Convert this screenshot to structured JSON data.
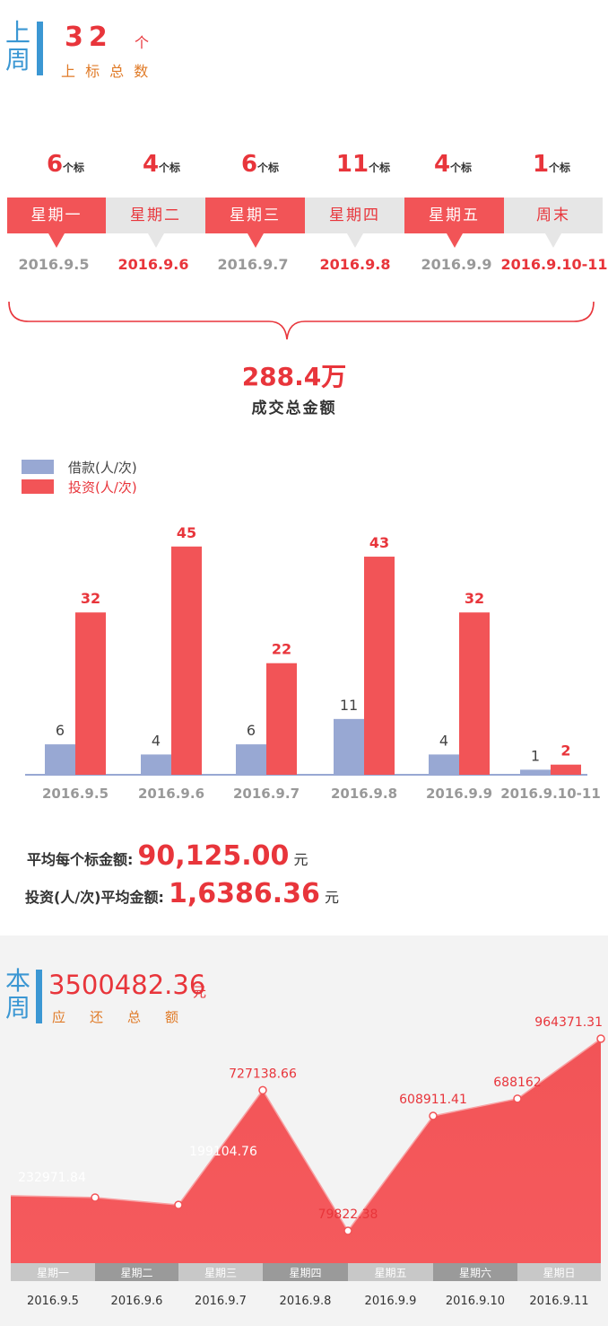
{
  "last_week": {
    "side_top": "上",
    "side_bottom": "周",
    "total": "32",
    "total_unit": "个",
    "total_label": "上 标 总 数",
    "days": [
      {
        "count": "6",
        "unit": "个标",
        "weekday": "星期一",
        "date": "2016.9.5",
        "active": true
      },
      {
        "count": "4",
        "unit": "个标",
        "weekday": "星期二",
        "date": "2016.9.6",
        "active": false
      },
      {
        "count": "6",
        "unit": "个标",
        "weekday": "星期三",
        "date": "2016.9.7",
        "active": true
      },
      {
        "count": "11",
        "unit": "个标",
        "weekday": "星期四",
        "date": "2016.9.8",
        "active": false
      },
      {
        "count": "4",
        "unit": "个标",
        "weekday": "星期五",
        "date": "2016.9.9",
        "active": true
      },
      {
        "count": "1",
        "unit": "个标",
        "weekday": "周末",
        "date": "2016.9.10-11",
        "active": false
      }
    ],
    "amount": "288.4万",
    "amount_label": "成交总金额"
  },
  "stats": {
    "avg_per_loan_label": "平均每个标金额:",
    "avg_per_loan_value": "90,125.00",
    "avg_per_loan_unit": "元",
    "avg_per_invest_label": "投资(人/次)平均金额:",
    "avg_per_invest_value": "1,6386.36",
    "avg_per_invest_unit": "元"
  },
  "this_week": {
    "side_top": "本",
    "side_bottom": "周",
    "total": "3500482.36",
    "total_unit": "元",
    "total_label": "应　还　总　额"
  },
  "chart_data": [
    {
      "type": "bar",
      "categories": [
        "2016.9.5",
        "2016.9.6",
        "2016.9.7",
        "2016.9.8",
        "2016.9.9",
        "2016.9.10-11"
      ],
      "series": [
        {
          "name": "借款(人/次)",
          "values": [
            6,
            4,
            6,
            11,
            4,
            1
          ],
          "color": "#98a8d3"
        },
        {
          "name": "投资(人/次)",
          "values": [
            32,
            45,
            22,
            43,
            32,
            2
          ],
          "color": "#f25457"
        }
      ],
      "legend": "top-left"
    },
    {
      "type": "area",
      "categories": [
        "星期一",
        "星期二",
        "星期三",
        "星期四",
        "星期五",
        "星期六",
        "星期日"
      ],
      "x": [
        "2016.9.5",
        "2016.9.6",
        "2016.9.7",
        "2016.9.8",
        "2016.9.9",
        "2016.9.10",
        "2016.9.11"
      ],
      "values": [
        232971.84,
        199104.76,
        727138.66,
        79822.38,
        608911.41,
        688162,
        964371.31
      ],
      "labels": [
        "232971.84",
        "199104.76",
        "727138.66",
        "79822.38",
        "608911.41",
        "688162",
        "964371.31"
      ],
      "color": "#f25457"
    }
  ]
}
